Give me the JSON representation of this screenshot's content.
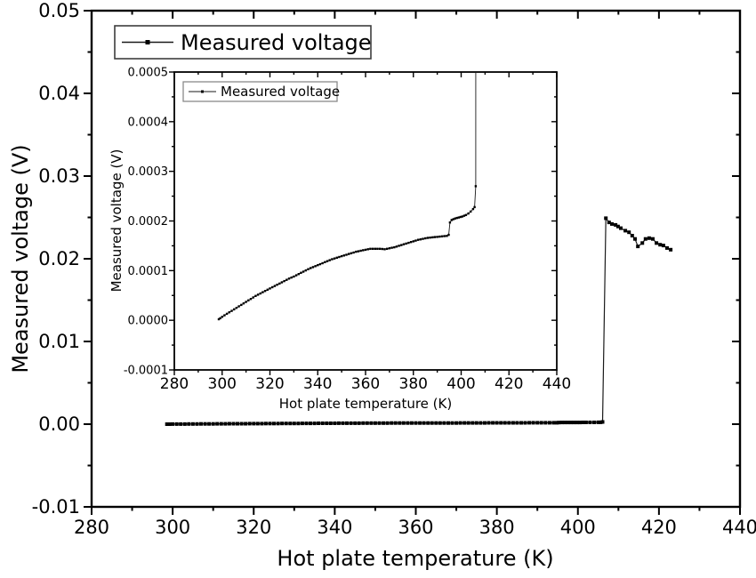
{
  "figure": {
    "background": "#ffffff"
  },
  "colors": {
    "axis": "#000000",
    "line": "#1a1a1a",
    "marker": "#000000",
    "text": "#000000",
    "legend_border_main": "#3d3d3d",
    "legend_border_inset": "#8a8a8a",
    "background": "#ffffff"
  },
  "chart_data": {
    "type": "line",
    "title": "",
    "series_name": "Measured voltage",
    "grid": false,
    "points_pre_jump": [
      [
        298.6,
        2e-06
      ],
      [
        299.2,
        4e-06
      ],
      [
        300,
        7e-06
      ],
      [
        302,
        1.3e-05
      ],
      [
        304,
        1.9e-05
      ],
      [
        306,
        2.5e-05
      ],
      [
        308,
        3.1e-05
      ],
      [
        310,
        3.7e-05
      ],
      [
        312,
        4.3e-05
      ],
      [
        314,
        4.9e-05
      ],
      [
        316,
        5.4e-05
      ],
      [
        318,
        5.9e-05
      ],
      [
        320,
        6.4e-05
      ],
      [
        322,
        6.9e-05
      ],
      [
        324,
        7.4e-05
      ],
      [
        326,
        7.9e-05
      ],
      [
        328,
        8.4e-05
      ],
      [
        330,
        8.8e-05
      ],
      [
        332,
        9.3e-05
      ],
      [
        334,
        9.8e-05
      ],
      [
        336,
        0.000103
      ],
      [
        338,
        0.000107
      ],
      [
        340,
        0.000111
      ],
      [
        342,
        0.000115
      ],
      [
        344,
        0.000119
      ],
      [
        346,
        0.000123
      ],
      [
        348,
        0.000126
      ],
      [
        350,
        0.000129
      ],
      [
        352,
        0.000132
      ],
      [
        354,
        0.000135
      ],
      [
        356,
        0.000138
      ],
      [
        358,
        0.00014
      ],
      [
        360,
        0.000142
      ],
      [
        362,
        0.000144
      ],
      [
        364,
        0.000144
      ],
      [
        366,
        0.000144
      ],
      [
        368,
        0.000143
      ],
      [
        370,
        0.000145
      ],
      [
        372,
        0.000147
      ],
      [
        374,
        0.00015
      ],
      [
        376,
        0.000153
      ],
      [
        378,
        0.000156
      ],
      [
        380,
        0.000159
      ],
      [
        382,
        0.000162
      ],
      [
        384,
        0.000164
      ],
      [
        386,
        0.000166
      ],
      [
        388,
        0.000167
      ],
      [
        390,
        0.000168
      ],
      [
        392,
        0.000169
      ],
      [
        394,
        0.00017
      ],
      [
        394.8,
        0.000172
      ],
      [
        395.3,
        0.000197
      ],
      [
        396,
        0.000202
      ],
      [
        397.5,
        0.000205
      ],
      [
        399,
        0.000207
      ],
      [
        400.5,
        0.000209
      ],
      [
        402,
        0.000212
      ],
      [
        403,
        0.000215
      ],
      [
        404,
        0.000219
      ],
      [
        405,
        0.000224
      ],
      [
        405.6,
        0.000228
      ],
      [
        406.1,
        0.00027
      ]
    ],
    "points_post_jump": [
      [
        406.9,
        0.0249
      ],
      [
        407.7,
        0.0244
      ],
      [
        408.4,
        0.0242
      ],
      [
        409.3,
        0.0241
      ],
      [
        409.9,
        0.0239
      ],
      [
        410.6,
        0.0237
      ],
      [
        411.7,
        0.0234
      ],
      [
        412.6,
        0.0232
      ],
      [
        413.4,
        0.0228
      ],
      [
        414.1,
        0.0224
      ],
      [
        414.8,
        0.0215
      ],
      [
        415.9,
        0.0219
      ],
      [
        416.7,
        0.0224
      ],
      [
        417.6,
        0.0225
      ],
      [
        418.5,
        0.0224
      ],
      [
        419.4,
        0.0219
      ],
      [
        420.3,
        0.0217
      ],
      [
        421.1,
        0.0216
      ],
      [
        422.0,
        0.0213
      ],
      [
        422.9,
        0.0211
      ]
    ],
    "main": {
      "xlabel": "Hot plate temperature (K)",
      "ylabel": "Measured voltage (V)",
      "legend": "Measured voltage",
      "xlim": [
        280,
        440
      ],
      "ylim": [
        -0.01,
        0.05
      ],
      "xticks": {
        "values": [
          280,
          300,
          320,
          340,
          360,
          380,
          400,
          420,
          440
        ],
        "labels": [
          "280",
          "300",
          "320",
          "340",
          "360",
          "380",
          "400",
          "420",
          "440"
        ],
        "minor": [
          290,
          310,
          330,
          350,
          370,
          390,
          410,
          430
        ]
      },
      "yticks": {
        "values": [
          -0.01,
          0.0,
          0.01,
          0.02,
          0.03,
          0.04,
          0.05
        ],
        "labels": [
          "-0.01",
          "0.00",
          "0.01",
          "0.02",
          "0.03",
          "0.04",
          "0.05"
        ],
        "minor": [
          -0.005,
          0.005,
          0.015,
          0.025,
          0.035,
          0.045
        ]
      }
    },
    "inset": {
      "xlabel": "Hot plate temperature (K)",
      "ylabel": "Measured voltage (V)",
      "legend": "Measured voltage",
      "xlim": [
        280,
        440
      ],
      "ylim": [
        -0.0001,
        0.0005
      ],
      "xticks": {
        "values": [
          280,
          300,
          320,
          340,
          360,
          380,
          400,
          420,
          440
        ],
        "labels": [
          "280",
          "300",
          "320",
          "340",
          "360",
          "380",
          "400",
          "420",
          "440"
        ],
        "minor": [
          290,
          310,
          330,
          350,
          370,
          390,
          410,
          430
        ]
      },
      "yticks": {
        "values": [
          -0.0001,
          0.0,
          0.0001,
          0.0002,
          0.0003,
          0.0004,
          0.0005
        ],
        "labels": [
          "-0.0001",
          "0.0000",
          "0.0001",
          "0.0002",
          "0.0003",
          "0.0004",
          "0.0005"
        ],
        "minor": [
          -5e-05,
          5e-05,
          0.00015,
          0.00025,
          0.00035,
          0.00045
        ]
      }
    }
  }
}
